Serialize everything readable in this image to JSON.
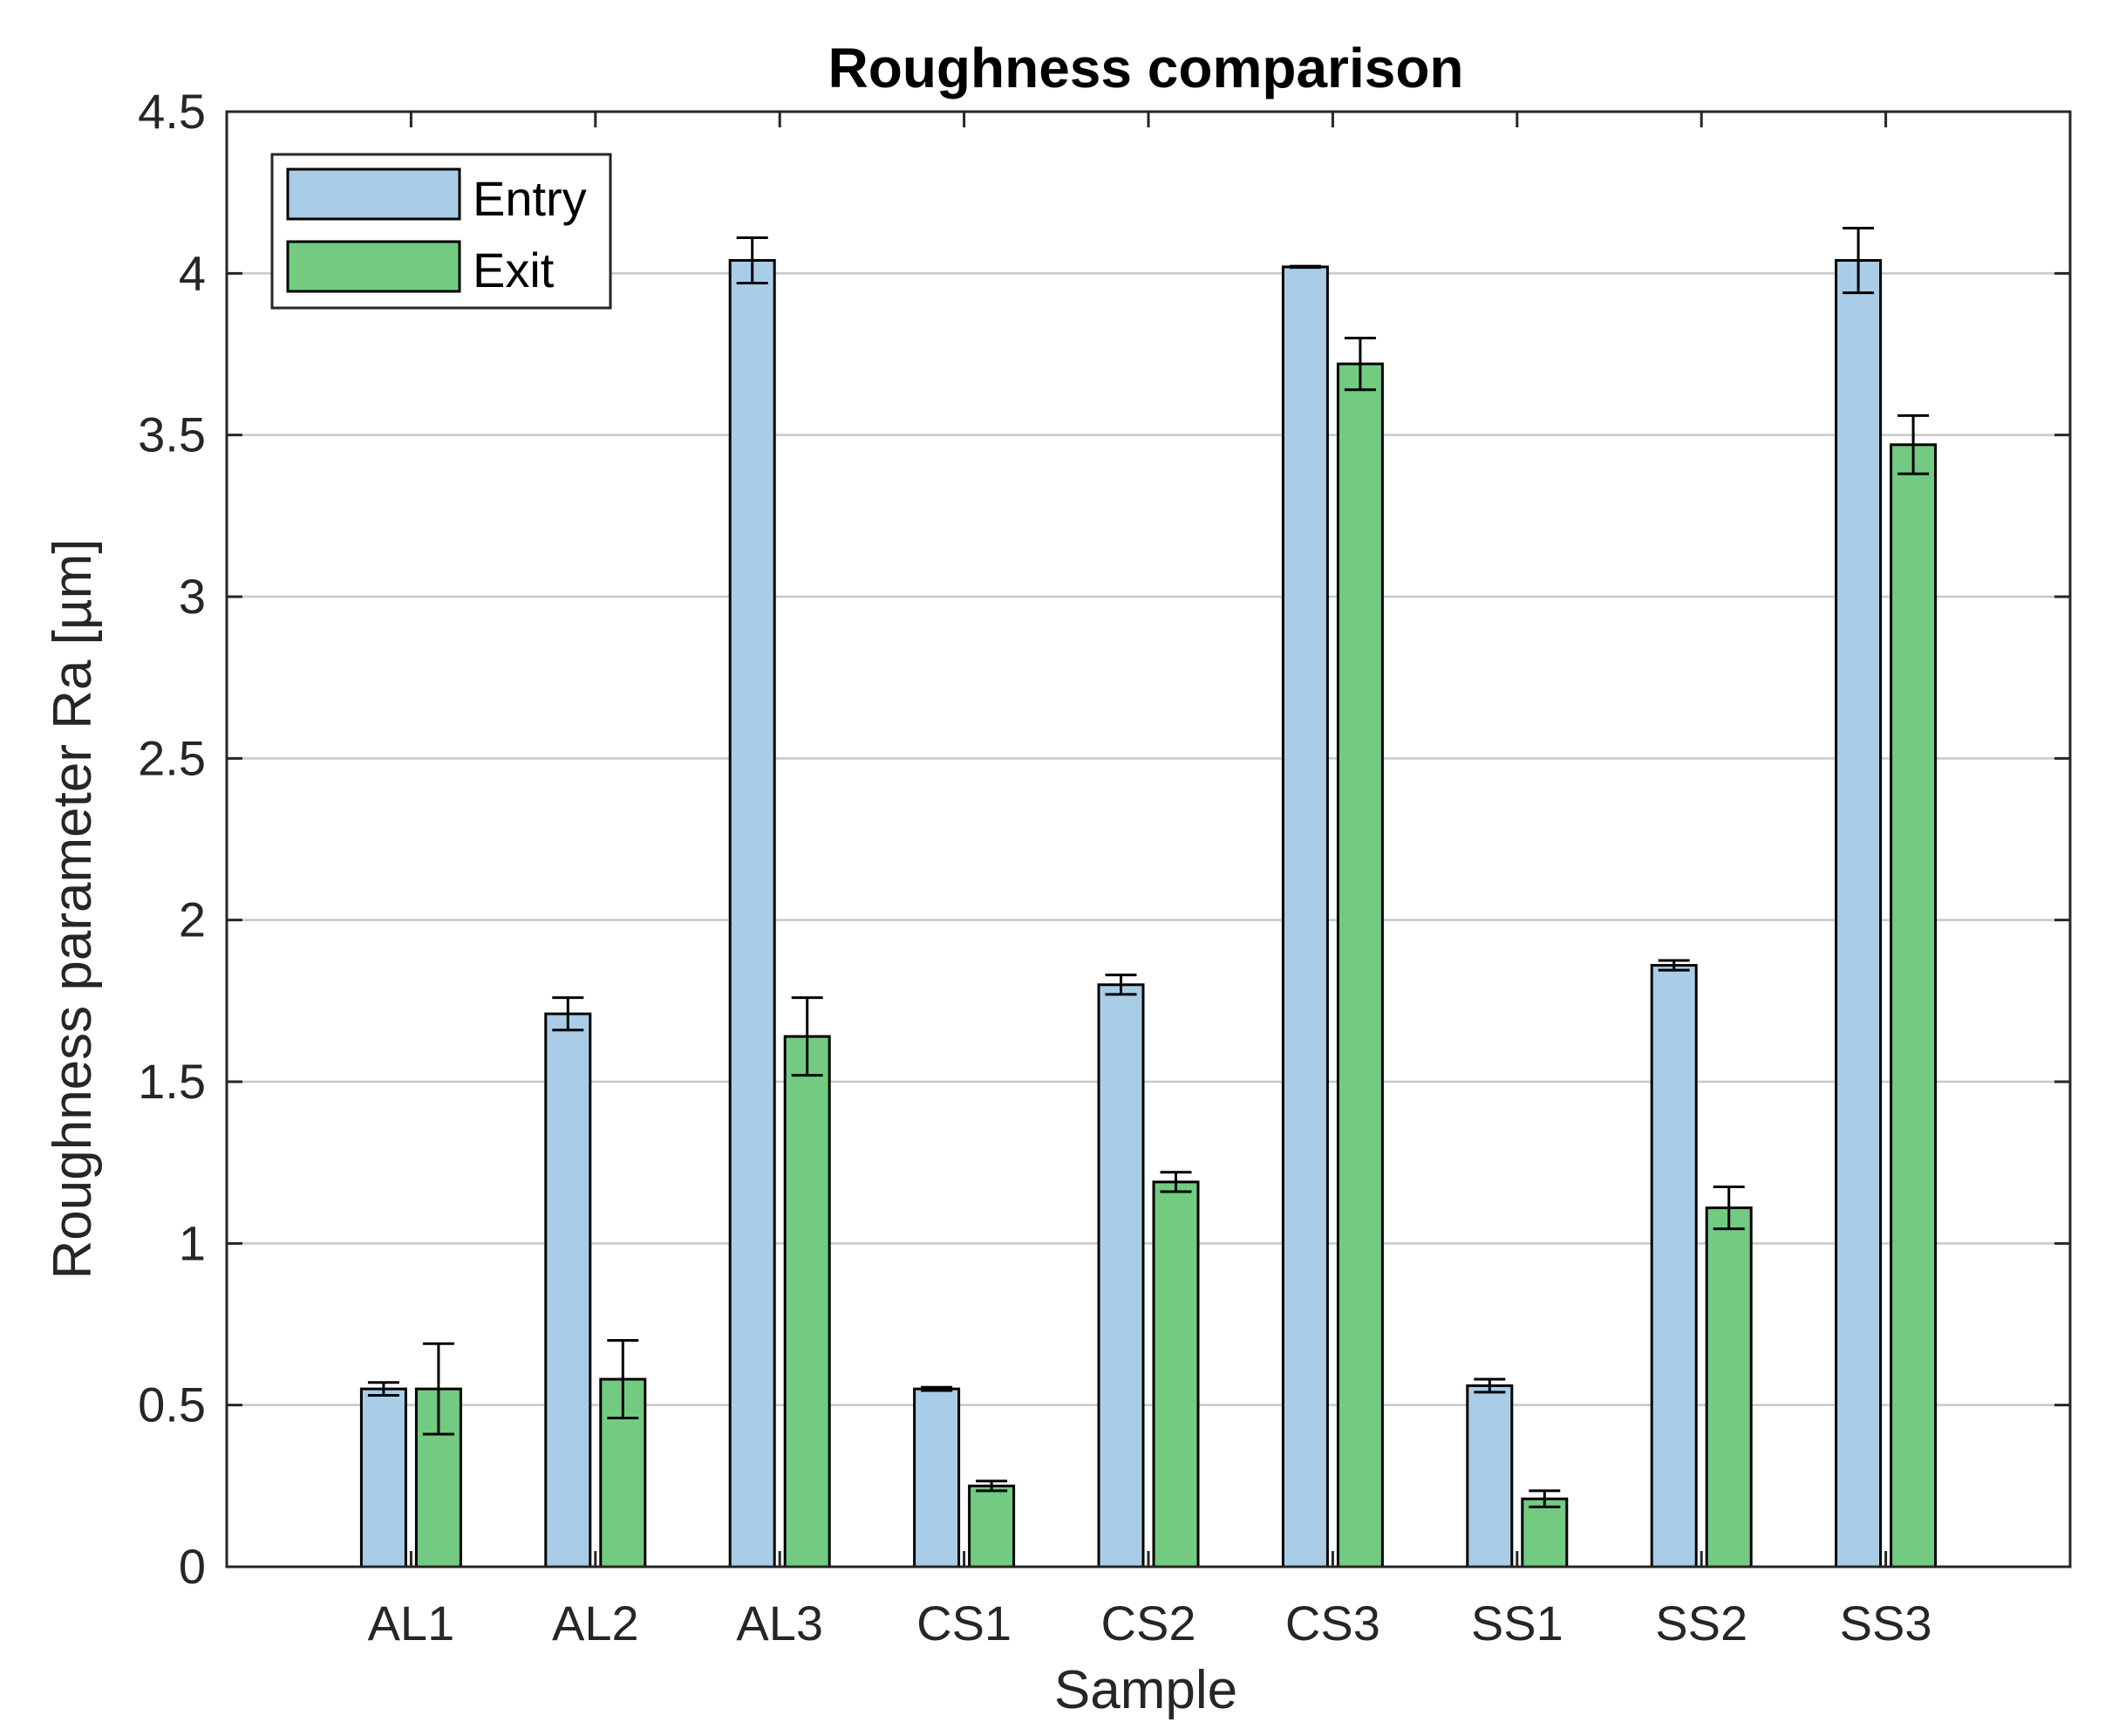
{
  "chart_data": {
    "type": "bar",
    "title": "Roughness comparison",
    "xlabel": "Sample",
    "ylabel": "Roughness parameter Ra [µm]",
    "ylim": [
      0,
      4.5
    ],
    "yticks": [
      0,
      0.5,
      1,
      1.5,
      2,
      2.5,
      3,
      3.5,
      4,
      4.5
    ],
    "ytick_labels": [
      "0",
      "0.5",
      "1",
      "1.5",
      "2",
      "2.5",
      "3",
      "3.5",
      "4",
      "4.5"
    ],
    "grid": true,
    "legend_position": "top-left",
    "categories": [
      "AL1",
      "AL2",
      "AL3",
      "CS1",
      "CS2",
      "CS3",
      "SS1",
      "SS2",
      "SS3"
    ],
    "series": [
      {
        "name": "Entry",
        "color": "#A9CDE7",
        "values": [
          0.55,
          1.71,
          4.04,
          0.55,
          1.8,
          4.02,
          0.56,
          1.86,
          4.04
        ],
        "errors": [
          0.02,
          0.05,
          0.07,
          0.005,
          0.03,
          0.002,
          0.02,
          0.015,
          0.1
        ]
      },
      {
        "name": "Exit",
        "color": "#72CB80",
        "values": [
          0.55,
          0.58,
          1.64,
          0.25,
          1.19,
          3.72,
          0.21,
          1.11,
          3.47
        ],
        "errors": [
          0.14,
          0.12,
          0.12,
          0.015,
          0.03,
          0.08,
          0.025,
          0.065,
          0.09
        ]
      }
    ]
  }
}
